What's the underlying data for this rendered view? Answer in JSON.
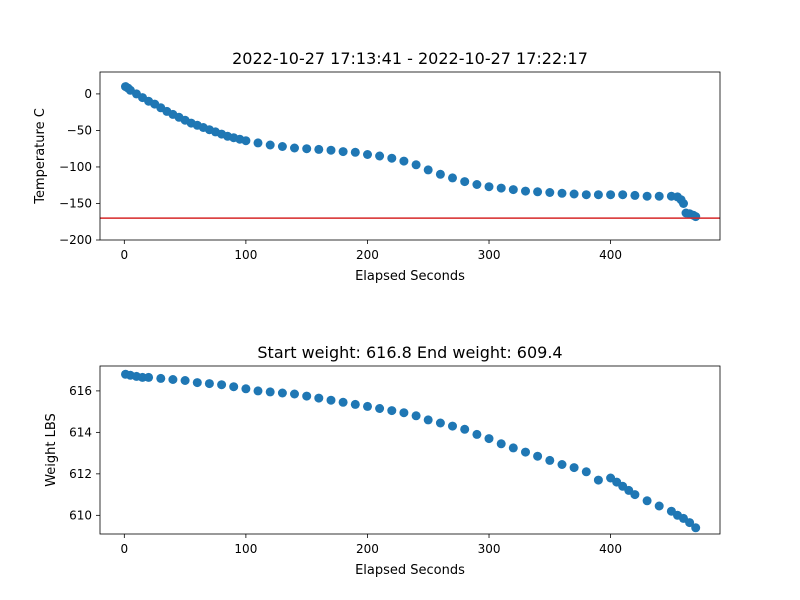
{
  "chart_data": [
    {
      "type": "scatter",
      "title": "2022-10-27 17:13:41 - 2022-10-27 17:22:17",
      "xlabel": "Elapsed Seconds",
      "ylabel": "Temperature C",
      "xlim": [
        -20,
        490
      ],
      "ylim": [
        -200,
        30
      ],
      "xticks": [
        0,
        100,
        200,
        300,
        400
      ],
      "yticks": [
        0,
        -50,
        -100,
        -150,
        -200
      ],
      "xtick_labels": [
        "0",
        "100",
        "200",
        "300",
        "400"
      ],
      "ytick_labels": [
        "0",
        "−50",
        "−100",
        "−150",
        "−200"
      ],
      "grid": false,
      "marker_color": "#1f77b4",
      "reference_line": {
        "y": -170,
        "color": "#d62728"
      },
      "points": [
        [
          1,
          10
        ],
        [
          3,
          8
        ],
        [
          5,
          5
        ],
        [
          10,
          0
        ],
        [
          15,
          -5
        ],
        [
          20,
          -10
        ],
        [
          25,
          -14
        ],
        [
          30,
          -19
        ],
        [
          35,
          -24
        ],
        [
          40,
          -28
        ],
        [
          45,
          -32
        ],
        [
          50,
          -36
        ],
        [
          55,
          -40
        ],
        [
          60,
          -43
        ],
        [
          65,
          -46
        ],
        [
          70,
          -49
        ],
        [
          75,
          -52
        ],
        [
          80,
          -55
        ],
        [
          85,
          -58
        ],
        [
          90,
          -60
        ],
        [
          95,
          -62
        ],
        [
          100,
          -64
        ],
        [
          110,
          -67
        ],
        [
          120,
          -70
        ],
        [
          130,
          -72
        ],
        [
          140,
          -74
        ],
        [
          150,
          -75
        ],
        [
          160,
          -76
        ],
        [
          170,
          -77
        ],
        [
          180,
          -79
        ],
        [
          190,
          -80
        ],
        [
          200,
          -83
        ],
        [
          210,
          -85
        ],
        [
          220,
          -88
        ],
        [
          230,
          -92
        ],
        [
          240,
          -97
        ],
        [
          250,
          -104
        ],
        [
          260,
          -110
        ],
        [
          270,
          -115
        ],
        [
          280,
          -120
        ],
        [
          290,
          -124
        ],
        [
          300,
          -127
        ],
        [
          310,
          -129
        ],
        [
          320,
          -131
        ],
        [
          330,
          -133
        ],
        [
          340,
          -134
        ],
        [
          350,
          -135
        ],
        [
          360,
          -136
        ],
        [
          370,
          -137
        ],
        [
          380,
          -138
        ],
        [
          390,
          -138
        ],
        [
          400,
          -138
        ],
        [
          410,
          -138
        ],
        [
          420,
          -139
        ],
        [
          430,
          -140
        ],
        [
          440,
          -140
        ],
        [
          450,
          -140
        ],
        [
          455,
          -141
        ],
        [
          458,
          -145
        ],
        [
          460,
          -150
        ],
        [
          462,
          -163
        ],
        [
          465,
          -164
        ],
        [
          468,
          -166
        ],
        [
          470,
          -168
        ]
      ]
    },
    {
      "type": "scatter",
      "title": "Start weight: 616.8 End weight: 609.4",
      "xlabel": "Elapsed Seconds",
      "ylabel": "Weight LBS",
      "xlim": [
        -20,
        490
      ],
      "ylim": [
        609.1,
        617.2
      ],
      "xticks": [
        0,
        100,
        200,
        300,
        400
      ],
      "yticks": [
        610,
        612,
        614,
        616
      ],
      "xtick_labels": [
        "0",
        "100",
        "200",
        "300",
        "400"
      ],
      "ytick_labels": [
        "610",
        "612",
        "614",
        "616"
      ],
      "grid": false,
      "marker_color": "#1f77b4",
      "points": [
        [
          1,
          616.8
        ],
        [
          5,
          616.75
        ],
        [
          10,
          616.7
        ],
        [
          15,
          616.65
        ],
        [
          20,
          616.65
        ],
        [
          30,
          616.6
        ],
        [
          40,
          616.55
        ],
        [
          50,
          616.5
        ],
        [
          60,
          616.4
        ],
        [
          70,
          616.35
        ],
        [
          80,
          616.3
        ],
        [
          90,
          616.2
        ],
        [
          100,
          616.1
        ],
        [
          110,
          616.0
        ],
        [
          120,
          615.95
        ],
        [
          130,
          615.9
        ],
        [
          140,
          615.85
        ],
        [
          150,
          615.75
        ],
        [
          160,
          615.65
        ],
        [
          170,
          615.55
        ],
        [
          180,
          615.45
        ],
        [
          190,
          615.35
        ],
        [
          200,
          615.25
        ],
        [
          210,
          615.15
        ],
        [
          220,
          615.05
        ],
        [
          230,
          614.95
        ],
        [
          240,
          614.8
        ],
        [
          250,
          614.6
        ],
        [
          260,
          614.45
        ],
        [
          270,
          614.3
        ],
        [
          280,
          614.15
        ],
        [
          290,
          613.9
        ],
        [
          300,
          613.7
        ],
        [
          310,
          613.45
        ],
        [
          320,
          613.25
        ],
        [
          330,
          613.05
        ],
        [
          340,
          612.85
        ],
        [
          350,
          612.65
        ],
        [
          360,
          612.45
        ],
        [
          370,
          612.3
        ],
        [
          380,
          612.1
        ],
        [
          390,
          611.7
        ],
        [
          400,
          611.8
        ],
        [
          405,
          611.6
        ],
        [
          410,
          611.4
        ],
        [
          415,
          611.2
        ],
        [
          420,
          611.0
        ],
        [
          430,
          610.7
        ],
        [
          440,
          610.45
        ],
        [
          450,
          610.2
        ],
        [
          455,
          610.0
        ],
        [
          460,
          609.85
        ],
        [
          465,
          609.65
        ],
        [
          470,
          609.4
        ]
      ]
    }
  ]
}
